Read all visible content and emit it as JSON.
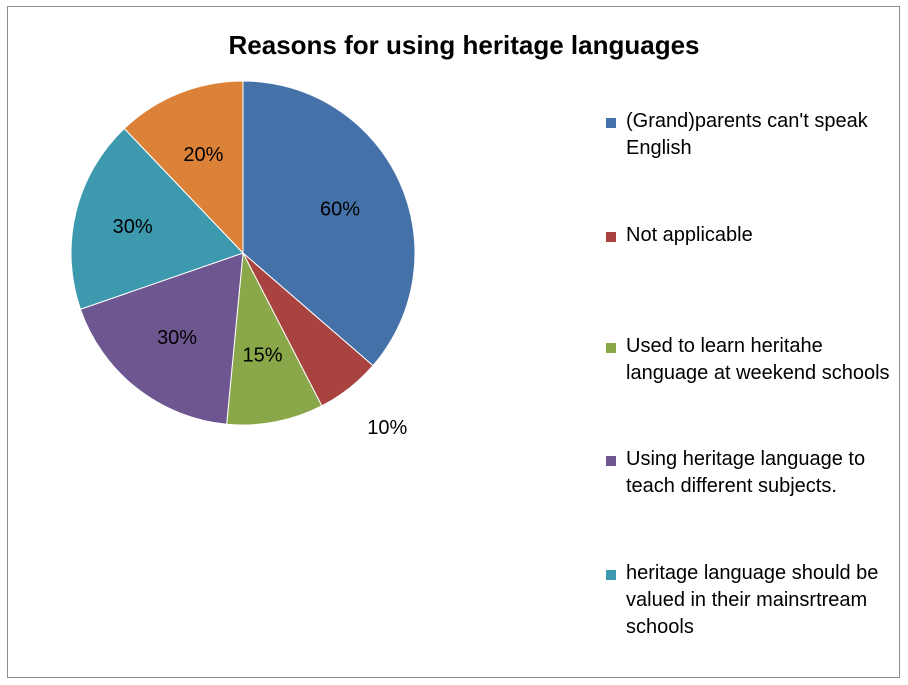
{
  "chart_data": {
    "type": "pie",
    "title": "Reasons  for using heritage languages",
    "slices": [
      {
        "label": "(Grand)parents can't speak English",
        "value": 60,
        "display": "60%",
        "color": "#4472a8"
      },
      {
        "label": "Not applicable",
        "value": 10,
        "display": "10%",
        "color": "#a84340"
      },
      {
        "label": "Used to learn heritahe language at weekend schools",
        "value": 15,
        "display": "15%",
        "color": "#8aa74a"
      },
      {
        "label": "Using heritage language to teach different subjects.",
        "value": 30,
        "display": "30%",
        "color": "#6e5690"
      },
      {
        "label": "heritage language should be valued in their mainsrtream schools",
        "value": 30,
        "display": "30%",
        "color": "#3d99ae"
      },
      {
        "label": "",
        "value": 20,
        "display": "20%",
        "color": "#dc8138"
      }
    ],
    "legend_position": "right"
  }
}
